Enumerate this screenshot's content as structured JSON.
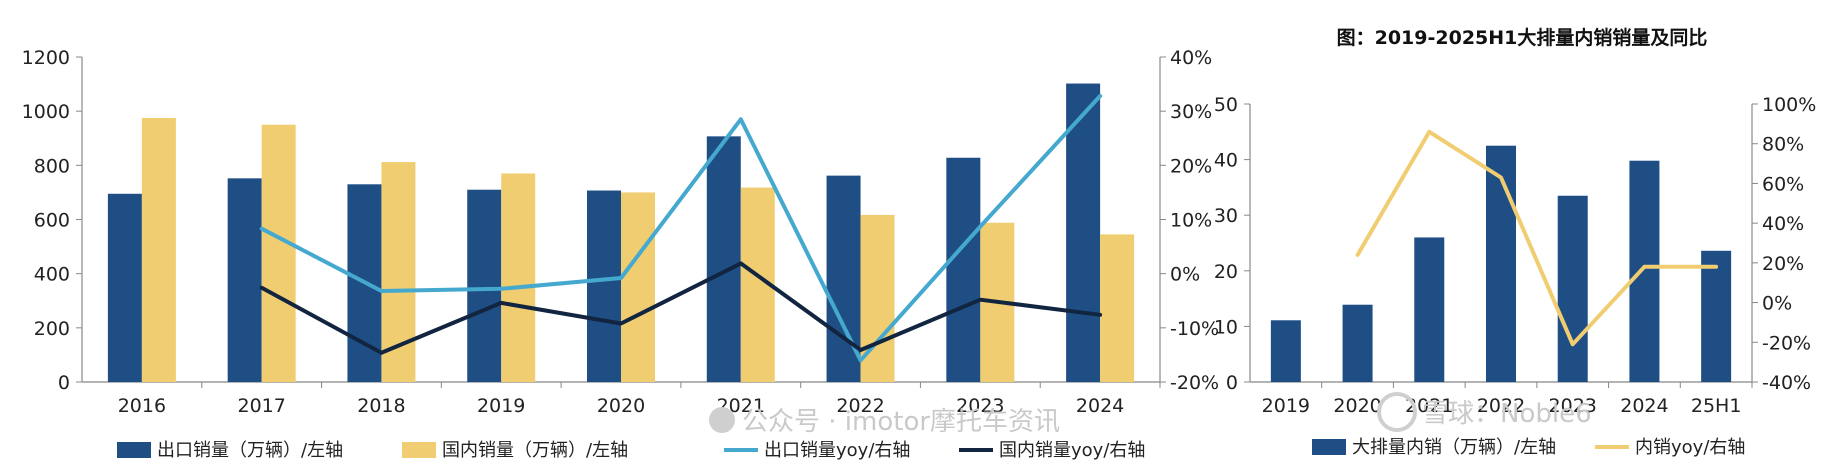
{
  "colors": {
    "navy_bar": "#1f4e85",
    "yellow_bar": "#f0cd70",
    "cyan_line": "#45a9cf",
    "dark_line": "#122540",
    "axis": "#888888"
  },
  "chart_data": [
    {
      "type": "bar",
      "title": "",
      "categories": [
        "2016",
        "2017",
        "2018",
        "2019",
        "2020",
        "2021",
        "2022",
        "2023",
        "2024"
      ],
      "left_axis": {
        "ylim": [
          0,
          1200
        ],
        "ticks": [
          "0",
          "200",
          "400",
          "600",
          "800",
          "1000",
          "1200"
        ]
      },
      "right_axis": {
        "ylim": [
          -20,
          40
        ],
        "ticks": [
          "-20%",
          "-10%",
          "0%",
          "10%",
          "20%",
          "30%",
          "40%"
        ]
      },
      "series": [
        {
          "name": "出口销量（万辆）/左轴",
          "kind": "bar",
          "axis": "left",
          "color": "#1f4e85",
          "values": [
            695,
            752,
            730,
            710,
            707,
            907,
            762,
            828,
            1102
          ]
        },
        {
          "name": "国内销量（万辆）/左轴",
          "kind": "bar",
          "axis": "left",
          "color": "#f0cd70",
          "values": [
            975,
            950,
            812,
            770,
            700,
            718,
            617,
            588,
            545
          ]
        },
        {
          "name": "出口销量yoy/右轴",
          "kind": "line",
          "axis": "right",
          "color": "#45a9cf",
          "values": [
            null,
            8.3,
            -3.2,
            -2.8,
            -0.8,
            28.5,
            -16.0,
            8.7,
            32.8
          ]
        },
        {
          "name": "国内销量yoy/右轴",
          "kind": "line",
          "axis": "right",
          "color": "#122540",
          "values": [
            null,
            -2.6,
            -14.6,
            -5.4,
            -9.2,
            1.9,
            -14.1,
            -4.8,
            -7.6
          ]
        }
      ],
      "grid": false,
      "legend": "bottom"
    },
    {
      "type": "bar",
      "title": "图：2019-2025H1大排量内销销量及同比",
      "categories": [
        "2019",
        "2020",
        "2021",
        "2022",
        "2023",
        "2024",
        "25H1"
      ],
      "left_axis": {
        "ylim": [
          0,
          50
        ],
        "ticks": [
          "0",
          "10",
          "20",
          "30",
          "40",
          "50"
        ]
      },
      "right_axis": {
        "ylim": [
          -40,
          100
        ],
        "ticks": [
          "-40%",
          "-20%",
          "0%",
          "20%",
          "40%",
          "60%",
          "80%",
          "100%"
        ]
      },
      "series": [
        {
          "name": "大排量内销（万辆）/左轴",
          "kind": "bar",
          "axis": "left",
          "color": "#1f4e85",
          "values": [
            11.1,
            13.9,
            26.0,
            42.5,
            33.5,
            39.8,
            23.6
          ]
        },
        {
          "name": "内销yoy/右轴",
          "kind": "line",
          "axis": "right",
          "color": "#f0cd70",
          "values": [
            null,
            24,
            86,
            63,
            -21,
            18,
            18
          ]
        }
      ],
      "grid": false,
      "legend": "bottom"
    }
  ],
  "watermarks": {
    "left": "公众号 · imotor摩托车资讯",
    "right": "雪球：Noble6"
  }
}
